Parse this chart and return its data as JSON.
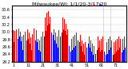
{
  "title": "Milwaukee/WI: 1/1/20-3/17/20",
  "highs": [
    30.05,
    30.02,
    30.08,
    30.12,
    30.1,
    30.0,
    29.88,
    29.92,
    30.0,
    30.06,
    30.08,
    29.98,
    29.85,
    29.95,
    30.1,
    30.08,
    30.04,
    29.82,
    29.78,
    29.88,
    30.0,
    30.18,
    30.38,
    30.52,
    30.56,
    30.42,
    30.28,
    30.22,
    30.08,
    29.98,
    29.88,
    30.04,
    30.18,
    30.28,
    30.4,
    30.35,
    30.22,
    30.08,
    29.9,
    29.78,
    29.82,
    29.88,
    29.92,
    29.98,
    30.08,
    30.02,
    29.92,
    29.78,
    29.68,
    29.72,
    29.88,
    29.98,
    29.88,
    29.78,
    29.68,
    29.62,
    29.72,
    29.82,
    29.88,
    29.78,
    29.82,
    29.88,
    29.78,
    29.68,
    29.72,
    29.82,
    29.88,
    29.78,
    29.68,
    29.72,
    29.78,
    29.82,
    29.88,
    29.82,
    29.76,
    29.82,
    29.88
  ],
  "lows": [
    29.72,
    29.6,
    29.72,
    29.82,
    29.88,
    29.76,
    29.52,
    29.58,
    29.68,
    29.78,
    29.82,
    29.68,
    29.52,
    29.68,
    29.82,
    29.78,
    29.72,
    29.52,
    29.48,
    29.58,
    29.68,
    29.88,
    30.02,
    30.18,
    30.22,
    30.12,
    29.98,
    29.92,
    29.78,
    29.68,
    29.58,
    29.72,
    29.88,
    29.98,
    30.08,
    30.02,
    29.92,
    29.78,
    29.62,
    29.48,
    29.52,
    29.58,
    29.62,
    29.68,
    29.78,
    29.72,
    29.62,
    29.48,
    29.38,
    29.42,
    29.58,
    29.68,
    29.58,
    29.48,
    29.38,
    29.32,
    29.42,
    29.52,
    29.58,
    29.48,
    29.52,
    29.58,
    29.48,
    29.38,
    29.42,
    29.52,
    29.58,
    29.48,
    29.38,
    29.42,
    29.48,
    29.52,
    29.58,
    29.52,
    29.46,
    29.52,
    29.58
  ],
  "ylim_min": 29.2,
  "ylim_max": 30.7,
  "ytick_vals": [
    29.2,
    29.4,
    29.6,
    29.8,
    30.0,
    30.2,
    30.4,
    30.6
  ],
  "ytick_labels": [
    "29.2",
    "29.4",
    "29.6",
    "29.8",
    "30.0",
    "30.2",
    "30.4",
    "30.6"
  ],
  "high_color": "#FF0000",
  "low_color": "#0000FF",
  "bg_color": "#FFFFFF",
  "title_fontsize": 4.5,
  "tick_fontsize": 3.5,
  "fig_width": 1.6,
  "fig_height": 0.87,
  "dpi": 100
}
